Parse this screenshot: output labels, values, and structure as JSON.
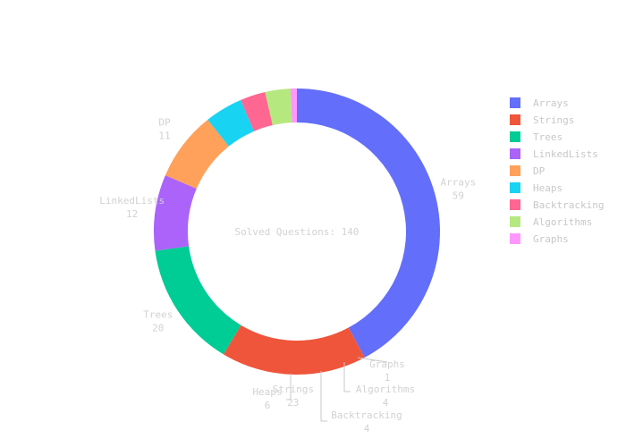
{
  "chart_data": {
    "type": "pie",
    "hole": true,
    "center_label": "Solved Questions: 140",
    "legend_position": "right",
    "slices": [
      {
        "label": "Arrays",
        "value": 59,
        "color": "#636efa"
      },
      {
        "label": "Strings",
        "value": 23,
        "color": "#ef553b"
      },
      {
        "label": "Trees",
        "value": 20,
        "color": "#00cc96"
      },
      {
        "label": "LinkedLists",
        "value": 12,
        "color": "#ab63fa"
      },
      {
        "label": "DP",
        "value": 11,
        "color": "#ffa15a"
      },
      {
        "label": "Heaps",
        "value": 6,
        "color": "#19d3f3"
      },
      {
        "label": "Backtracking",
        "value": 4,
        "color": "#ff6692"
      },
      {
        "label": "Algorithms",
        "value": 4,
        "color": "#b6e880"
      },
      {
        "label": "Graphs",
        "value": 1,
        "color": "#ff97ff"
      }
    ]
  }
}
